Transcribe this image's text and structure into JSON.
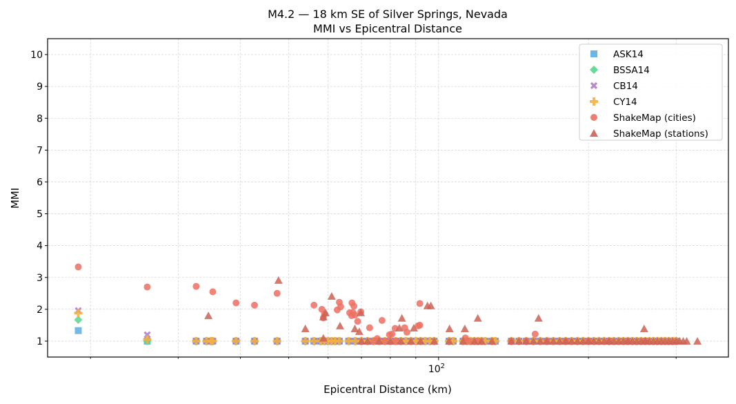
{
  "chart_data": {
    "type": "scatter",
    "title": "M4.2 — 18 km SE of Silver Springs, Nevada",
    "subtitle": "MMI vs Epicentral Distance",
    "xlabel": "Epicentral Distance (km)",
    "ylabel": "MMI",
    "xscale": "log",
    "xlim": [
      16.4,
      382
    ],
    "ylim": [
      0.5,
      10.5
    ],
    "x_major_ticks": [
      {
        "value": 100,
        "label": "10",
        "exp": "2"
      }
    ],
    "x_minor_ticks": [
      20,
      30,
      40,
      50,
      60,
      70,
      80,
      90,
      200,
      300
    ],
    "y_ticks": [
      1,
      2,
      3,
      4,
      5,
      6,
      7,
      8,
      9,
      10
    ],
    "grid": true,
    "legend_placement": "top-right",
    "model_distances": [
      18.9,
      26.0,
      32.6,
      34.2,
      34.9,
      35.2,
      39.2,
      42.7,
      47.4,
      54.0,
      56.2,
      58.0,
      59.0,
      60.0,
      61.0,
      62.0,
      63.2,
      66,
      68,
      70,
      72,
      74,
      76,
      78,
      80,
      82,
      84,
      86,
      88,
      90,
      92,
      94,
      96,
      98,
      105,
      107,
      112,
      114,
      116,
      118,
      120,
      122,
      124,
      128,
      130,
      140,
      145,
      150,
      155,
      160,
      165,
      170,
      175,
      180,
      185,
      190,
      195,
      200,
      205,
      210,
      215,
      220,
      225,
      230,
      235,
      240,
      245,
      250,
      255,
      260,
      265,
      270,
      275,
      280,
      285,
      290,
      295,
      300
    ],
    "series": [
      {
        "name": "ASK14",
        "marker": "square",
        "color": "#5DADE2",
        "mmi": [
          1.33,
          1,
          1,
          1,
          1,
          1,
          1,
          1,
          1,
          1,
          1,
          1,
          1,
          1,
          1,
          1,
          1,
          1,
          1,
          1,
          1,
          1,
          1,
          1,
          1,
          1,
          1,
          1,
          1,
          1,
          1,
          1,
          1,
          1,
          1,
          1,
          1,
          1,
          1,
          1,
          1,
          1,
          1,
          1,
          1,
          1,
          1,
          1,
          1,
          1,
          1,
          1,
          1,
          1,
          1,
          1,
          1,
          1,
          1,
          1,
          1,
          1,
          1,
          1,
          1,
          1,
          1,
          1,
          1,
          1,
          1,
          1,
          1,
          1,
          1,
          1,
          1,
          1
        ]
      },
      {
        "name": "BSSA14",
        "marker": "diamond",
        "color": "#58D68D",
        "mmi": [
          1.67,
          1,
          1,
          1,
          1,
          1,
          1,
          1,
          1,
          1,
          1,
          1,
          1,
          1,
          1,
          1,
          1,
          1,
          1,
          1,
          1,
          1,
          1,
          1,
          1,
          1,
          1,
          1,
          1,
          1,
          1,
          1,
          1,
          1,
          1,
          1,
          1,
          1,
          1,
          1,
          1,
          1,
          1,
          1,
          1,
          1,
          1,
          1,
          1,
          1,
          1,
          1,
          1,
          1,
          1,
          1,
          1,
          1,
          1,
          1,
          1,
          1,
          1,
          1,
          1,
          1,
          1,
          1,
          1,
          1,
          1,
          1,
          1,
          1,
          1,
          1,
          1,
          1
        ]
      },
      {
        "name": "CB14",
        "marker": "x",
        "color": "#AF7AC5",
        "mmi": [
          1.96,
          1.2,
          1,
          1,
          1,
          1,
          1,
          1,
          1,
          1,
          1,
          1,
          1,
          1,
          1,
          1,
          1,
          1,
          1,
          1,
          1,
          1,
          1,
          1,
          1,
          1,
          1,
          1,
          1,
          1,
          1,
          1,
          1,
          1,
          1,
          1,
          1,
          1,
          1,
          1,
          1,
          1,
          1,
          1,
          1,
          1,
          1,
          1,
          1,
          1,
          1,
          1,
          1,
          1,
          1,
          1,
          1,
          1,
          1,
          1,
          1,
          1,
          1,
          1,
          1,
          1,
          1,
          1,
          1,
          1,
          1,
          1,
          1,
          1,
          1,
          1,
          1,
          1
        ]
      },
      {
        "name": "CY14",
        "marker": "plus",
        "color": "#F5B041",
        "mmi": [
          1.88,
          1.05,
          1,
          1,
          1,
          1,
          1,
          1,
          1,
          1,
          1,
          1,
          1,
          1,
          1,
          1,
          1,
          1,
          1,
          1,
          1,
          1,
          1,
          1,
          1,
          1,
          1,
          1,
          1,
          1,
          1,
          1,
          1,
          1,
          1,
          1,
          1,
          1,
          1,
          1,
          1,
          1,
          1,
          1,
          1,
          1,
          1,
          1,
          1,
          1,
          1,
          1,
          1,
          1,
          1,
          1,
          1,
          1,
          1,
          1,
          1,
          1,
          1,
          1,
          1,
          1,
          1,
          1,
          1,
          1,
          1,
          1,
          1,
          1,
          1,
          1,
          1,
          1
        ]
      },
      {
        "name": "ShakeMap (cities)",
        "marker": "circle",
        "color": "#EC7063",
        "points": [
          [
            18.9,
            3.33
          ],
          [
            26.0,
            2.7
          ],
          [
            32.6,
            2.72
          ],
          [
            35.2,
            2.55
          ],
          [
            39.2,
            2.2
          ],
          [
            42.7,
            2.13
          ],
          [
            47.4,
            2.5
          ],
          [
            56.2,
            2.13
          ],
          [
            58.3,
            2.0
          ],
          [
            58.7,
            1.73
          ],
          [
            59.0,
            1.85
          ],
          [
            62.6,
            1.98
          ],
          [
            63.2,
            2.22
          ],
          [
            63.6,
            2.08
          ],
          [
            67.3,
            1.9
          ],
          [
            67.9,
            1.82
          ],
          [
            67.0,
            2.2
          ],
          [
            67.6,
            2.1
          ],
          [
            66.3,
            1.89
          ],
          [
            66.9,
            1.8
          ],
          [
            69.8,
            1.92
          ],
          [
            68.8,
            1.62
          ],
          [
            72.7,
            1.42
          ],
          [
            75.3,
            1.08
          ],
          [
            77.0,
            1.65
          ],
          [
            79.7,
            1.2
          ],
          [
            80.6,
            1.22
          ],
          [
            81.8,
            1.4
          ],
          [
            85.5,
            1.42
          ],
          [
            86.4,
            1.28
          ],
          [
            91.0,
            1.48
          ],
          [
            91.7,
            1.5
          ],
          [
            91.7,
            2.18
          ],
          [
            113.2,
            1.1
          ],
          [
            156.3,
            1.22
          ],
          [
            74,
            1.0
          ],
          [
            78,
            1.0
          ],
          [
            82,
            1.0
          ],
          [
            115,
            1.0
          ],
          [
            120,
            1.0
          ],
          [
            140,
            1.0
          ],
          [
            150,
            1.0
          ],
          [
            165,
            1.0
          ],
          [
            180,
            1.0
          ],
          [
            200,
            1.0
          ],
          [
            220,
            1.0
          ],
          [
            240,
            1.0
          ],
          [
            260,
            1.0
          ]
        ]
      },
      {
        "name": "ShakeMap (stations)",
        "marker": "triangle",
        "color": "#CD6155",
        "points": [
          [
            34.5,
            1.8
          ],
          [
            47.7,
            2.91
          ],
          [
            54.0,
            1.39
          ],
          [
            58.7,
            1.76
          ],
          [
            58.7,
            1.09
          ],
          [
            59.3,
            1.89
          ],
          [
            61.0,
            2.41
          ],
          [
            63.4,
            1.48
          ],
          [
            67.9,
            1.39
          ],
          [
            69.3,
            1.3
          ],
          [
            69.8,
            1.89
          ],
          [
            83.4,
            1.41
          ],
          [
            84.4,
            1.72
          ],
          [
            89.2,
            1.41
          ],
          [
            95.0,
            2.11
          ],
          [
            96.5,
            2.11
          ],
          [
            105.2,
            1.39
          ],
          [
            112.9,
            1.39
          ],
          [
            119.9,
            1.72
          ],
          [
            158.8,
            1.72
          ],
          [
            258.7,
            1.39
          ],
          [
            70,
            1.0
          ],
          [
            72,
            1.0
          ],
          [
            76,
            1.0
          ],
          [
            80,
            1.0
          ],
          [
            84,
            1.0
          ],
          [
            88,
            1.0
          ],
          [
            92,
            1.0
          ],
          [
            98,
            1.0
          ],
          [
            105,
            1.0
          ],
          [
            112,
            1.0
          ],
          [
            118,
            1.0
          ],
          [
            122,
            1.0
          ],
          [
            128,
            1.0
          ],
          [
            140,
            1.0
          ],
          [
            145,
            1.0
          ],
          [
            150,
            1.0
          ],
          [
            155,
            1.0
          ],
          [
            160,
            1.0
          ],
          [
            165,
            1.0
          ],
          [
            170,
            1.0
          ],
          [
            175,
            1.0
          ],
          [
            180,
            1.0
          ],
          [
            185,
            1.0
          ],
          [
            190,
            1.0
          ],
          [
            195,
            1.0
          ],
          [
            200,
            1.0
          ],
          [
            205,
            1.0
          ],
          [
            210,
            1.0
          ],
          [
            215,
            1.0
          ],
          [
            220,
            1.0
          ],
          [
            225,
            1.0
          ],
          [
            230,
            1.0
          ],
          [
            235,
            1.0
          ],
          [
            240,
            1.0
          ],
          [
            245,
            1.0
          ],
          [
            250,
            1.0
          ],
          [
            255,
            1.0
          ],
          [
            260,
            1.0
          ],
          [
            265,
            1.0
          ],
          [
            270,
            1.0
          ],
          [
            275,
            1.0
          ],
          [
            280,
            1.0
          ],
          [
            285,
            1.0
          ],
          [
            290,
            1.0
          ],
          [
            295,
            1.0
          ],
          [
            300,
            1.0
          ],
          [
            305,
            1.0
          ],
          [
            310,
            1.0
          ],
          [
            315,
            1.0
          ],
          [
            331,
            1.0
          ]
        ]
      }
    ]
  }
}
